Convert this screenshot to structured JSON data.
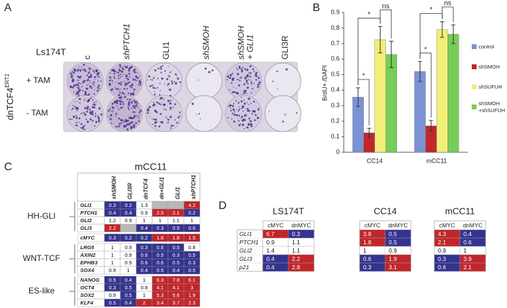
{
  "panel_a": {
    "letter": "A",
    "cell_line": "Ls174T",
    "columns": [
      "c",
      "shPTCH1",
      "GLI1",
      "shSMOH",
      "shSMOH + GLI1",
      "GLI3R"
    ],
    "rows": [
      "+ TAM",
      "- TAM"
    ],
    "construct": "dnTCF4",
    "construct_superscript": "ERT2"
  },
  "chart_data": {
    "type": "bar",
    "letter": "B",
    "y_label": "BrdU+ /DAPI",
    "categories": [
      "CC14",
      "mCC11"
    ],
    "series": [
      {
        "name": "control",
        "color": "#7b93d4",
        "values": [
          0.355,
          0.52
        ],
        "errors": [
          0.06,
          0.065
        ]
      },
      {
        "name": "shSMOH",
        "color": "#c0282a",
        "values": [
          0.125,
          0.17
        ],
        "errors": [
          0.03,
          0.035
        ]
      },
      {
        "name": "shSUFUH",
        "color": "#f3ee78",
        "values": [
          0.725,
          0.79
        ],
        "errors": [
          0.085,
          0.05
        ]
      },
      {
        "name": "shSMOH +shSUFUH",
        "color": "#78cc58",
        "values": [
          0.63,
          0.76
        ],
        "errors": [
          0.085,
          0.06
        ]
      }
    ],
    "ylim": [
      0,
      0.9
    ],
    "yticks": [
      0,
      0.1,
      0.2,
      0.3,
      0.4,
      0.5,
      0.6,
      0.7,
      0.8,
      0.9
    ],
    "annotations": [
      "*",
      "*",
      "ns",
      "*",
      "*",
      "ns"
    ]
  },
  "panel_c": {
    "letter": "C",
    "title": "mCC11",
    "columns": [
      "shSMOH",
      "GLI3R",
      "dnTCF4",
      "dn+GLI1",
      "GLI1",
      "shPTCH1"
    ],
    "colors": {
      "low": "#34338f",
      "high": "#c0262b",
      "mid": "#ffffff",
      "missing": "#b8b8b8"
    },
    "blocks": [
      {
        "label": "HH-GLI",
        "rows": [
          {
            "gene": "GLI1",
            "values": [
              0.3,
              0.2,
              1.3,
              null,
              null,
              4.2
            ]
          },
          {
            "gene": "PTCH1",
            "values": [
              0.4,
              0.4,
              0.9,
              2.5,
              2.1,
              0.2
            ]
          },
          {
            "gene": "GLI2",
            "values": [
              1.2,
              0.9,
              1,
              1,
              1.1,
              1
            ]
          },
          {
            "gene": "GLI3",
            "values": [
              2.2,
              null,
              0.4,
              0.3,
              0.5,
              0.6
            ]
          }
        ]
      },
      {
        "label": null,
        "rows": [
          {
            "gene": "cMYC",
            "values": [
              0.3,
              0.2,
              0.2,
              1.6,
              1.8,
              1.5
            ]
          }
        ]
      },
      {
        "label": "WNT-TCF",
        "rows": [
          {
            "gene": "LRG5",
            "values": [
              1,
              0.9,
              0.3,
              0.6,
              0.5,
              0.8
            ]
          },
          {
            "gene": "AXIN2",
            "values": [
              1,
              0.9,
              0.6,
              0.5,
              0.3,
              0.5
            ]
          },
          {
            "gene": "EPHB3",
            "values": [
              1,
              0.9,
              0.6,
              0.6,
              0.5,
              0.3
            ]
          },
          {
            "gene": "SOX4",
            "values": [
              0.9,
              1,
              0.4,
              0.5,
              0.4,
              0.5
            ]
          }
        ]
      },
      {
        "label": "ES-like",
        "rows": [
          {
            "gene": "NANOG",
            "values": [
              0.5,
              0.4,
              1,
              6.3,
              7.8,
              6.1
            ]
          },
          {
            "gene": "OCT4",
            "values": [
              0.3,
              0.5,
              0.8,
              4.1,
              4.1,
              3
            ]
          },
          {
            "gene": "SOX2",
            "values": [
              0.9,
              0.5,
              1,
              5.3,
              5.6,
              1.9
            ]
          },
          {
            "gene": "KLF4",
            "values": [
              0.5,
              0.4,
              2,
              3.4,
              3.7,
              2.3
            ]
          }
        ]
      }
    ]
  },
  "panel_d": {
    "letter": "D",
    "groups": [
      {
        "name": "LS174T",
        "columns": [
          "cMYC",
          "dnMYC"
        ]
      },
      {
        "name": "CC14",
        "columns": [
          "cMYC",
          "dnMYC"
        ]
      },
      {
        "name": "mCC11",
        "columns": [
          "cMYC",
          "dnMYC"
        ]
      }
    ],
    "rows": [
      {
        "gene": "GLI1",
        "values": [
          6.7,
          0.3,
          3.8,
          0.5,
          4.3,
          0.4
        ]
      },
      {
        "gene": "PTCH1",
        "values": [
          0.9,
          1.1,
          1.8,
          0.5,
          2.1,
          0.6
        ]
      },
      {
        "gene": "GLI2",
        "values": [
          1.4,
          1.1,
          1,
          0.9,
          0.9,
          1
        ]
      },
      {
        "gene": "GLI3",
        "values": [
          0.4,
          2.2,
          0.6,
          1.9,
          0.3,
          3.9
        ]
      },
      {
        "gene": "p21",
        "values": [
          0.4,
          2.8,
          0.3,
          3.1,
          0.6,
          2.1
        ]
      }
    ]
  }
}
